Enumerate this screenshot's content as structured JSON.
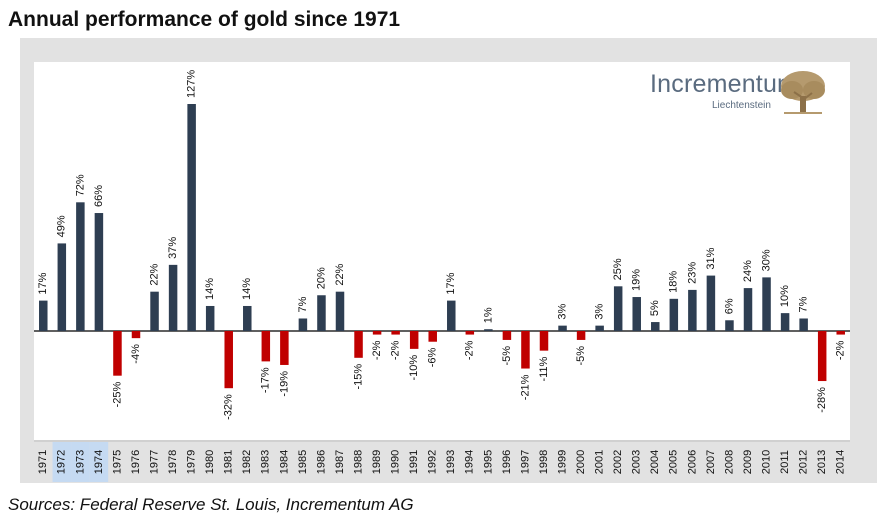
{
  "title": "Annual performance of gold since 1971",
  "source": "Sources: Federal Reserve St. Louis, Incrementum AG",
  "brand": {
    "name": "Incrementum",
    "sub": "Liechtenstein",
    "icon": "tree-icon"
  },
  "colors": {
    "positive": "#2e3e52",
    "negative": "#c00000",
    "highlight": "#c5daf2"
  },
  "chart_data": {
    "type": "bar",
    "title": "Annual performance of gold since 1971",
    "xlabel": "",
    "ylabel": "",
    "ylim": [
      -45,
      145
    ],
    "grid": false,
    "highlighted_categories": [
      "1972",
      "1973",
      "1974"
    ],
    "categories": [
      "1971",
      "1972",
      "1973",
      "1974",
      "1975",
      "1976",
      "1977",
      "1978",
      "1979",
      "1980",
      "1981",
      "1982",
      "1983",
      "1984",
      "1985",
      "1986",
      "1987",
      "1988",
      "1989",
      "1990",
      "1991",
      "1992",
      "1993",
      "1994",
      "1995",
      "1996",
      "1997",
      "1998",
      "1999",
      "2000",
      "2001",
      "2002",
      "2003",
      "2004",
      "2005",
      "2006",
      "2007",
      "2008",
      "2009",
      "2010",
      "2011",
      "2012",
      "2013",
      "2014"
    ],
    "values": [
      17,
      49,
      72,
      66,
      -25,
      -4,
      22,
      37,
      127,
      14,
      -32,
      14,
      -17,
      -19,
      7,
      20,
      22,
      -15,
      -2,
      -2,
      -10,
      -6,
      17,
      -2,
      1,
      -5,
      -21,
      -11,
      3,
      -5,
      3,
      25,
      19,
      5,
      18,
      23,
      31,
      6,
      24,
      30,
      10,
      7,
      -28,
      -2
    ],
    "labels": [
      "17%",
      "49%",
      "72%",
      "66%",
      "-25%",
      "-4%",
      "22%",
      "37%",
      "127%",
      "14%",
      "-32%",
      "14%",
      "-17%",
      "-19%",
      "7%",
      "20%",
      "22%",
      "-15%",
      "-2%",
      "-2%",
      "-10%",
      "-6%",
      "17%",
      "-2%",
      "1%",
      "-5%",
      "-21%",
      "-11%",
      "3%",
      "-5%",
      "3%",
      "25%",
      "19%",
      "5%",
      "18%",
      "23%",
      "31%",
      "6%",
      "24%",
      "30%",
      "10%",
      "7%",
      "-28%",
      "-2%"
    ]
  }
}
